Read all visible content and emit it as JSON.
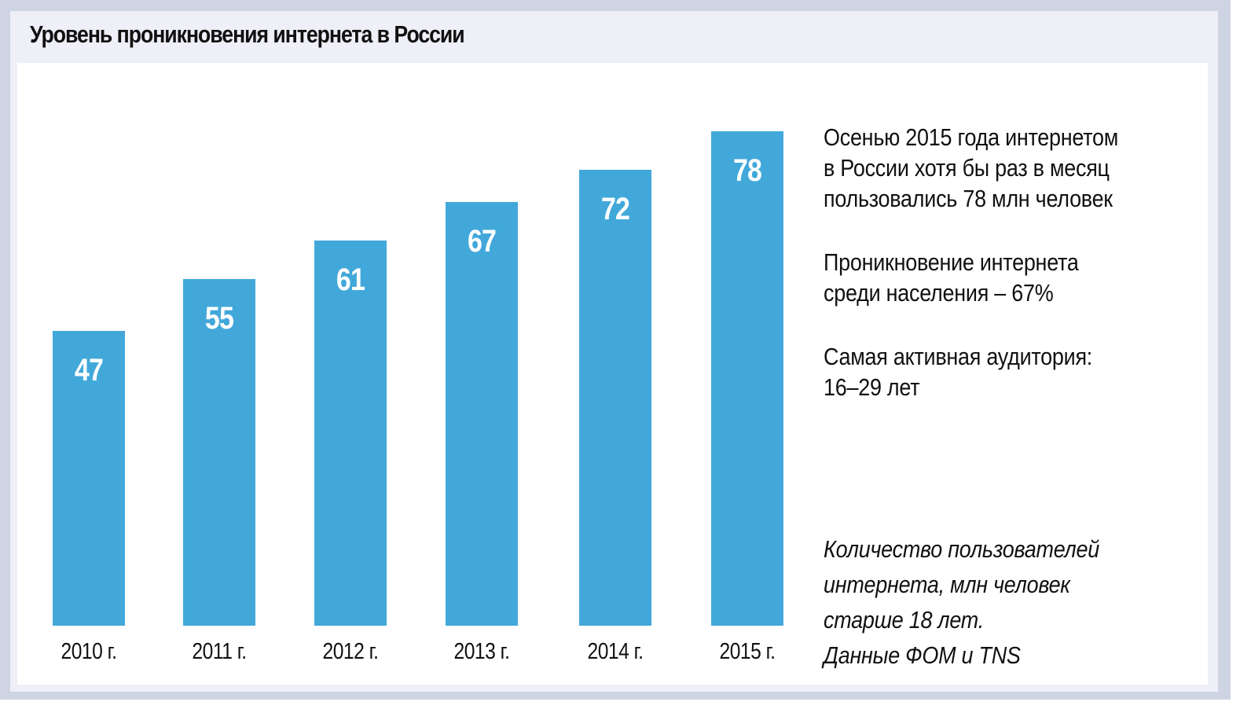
{
  "title": "Уровень проникновения интернета в России",
  "colors": {
    "bar": "#42a8da",
    "frame": "#cfd4e4",
    "panel": "#eeeff7",
    "plot_bg": "#ffffff",
    "text": "#111111",
    "bar_label": "#ffffff"
  },
  "chart_data": {
    "type": "bar",
    "title": "Уровень проникновения интернета в России",
    "categories": [
      "2010 г.",
      "2011 г.",
      "2012 г.",
      "2013 г.",
      "2014 г.",
      "2015 г."
    ],
    "values": [
      47,
      55,
      61,
      67,
      72,
      78
    ],
    "value_labels": [
      "47",
      "55",
      "61",
      "67",
      "72",
      "78"
    ],
    "xlabel": "",
    "ylabel": "Количество пользователей интернета, млн человек старше 18 лет",
    "grid": false,
    "legend": "none",
    "data_labels": "inside-top"
  },
  "notes": [
    {
      "lines": [
        "Осенью 2015 года интернетом",
        "в России хотя бы раз в месяц",
        "пользовались 78 млн человек"
      ]
    },
    {
      "lines": [
        "Проникновение интернета",
        "среди населения  – 67%"
      ]
    },
    {
      "lines": [
        "Самая активная аудитория:",
        "16–29 лет"
      ]
    }
  ],
  "source": {
    "lines": [
      "Количество пользователей",
      "интернета, млн человек",
      "старше 18 лет.",
      "Данные ФОМ и TNS"
    ]
  }
}
